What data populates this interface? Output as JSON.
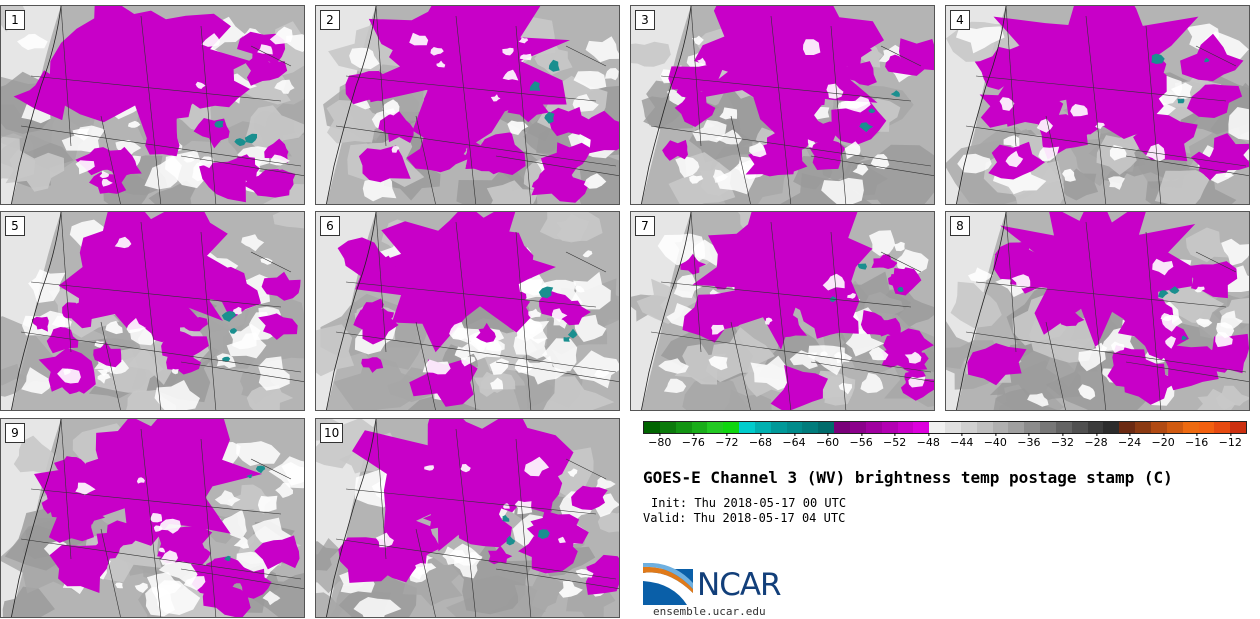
{
  "panels": [
    {
      "label": "1",
      "seed": 11
    },
    {
      "label": "2",
      "seed": 23
    },
    {
      "label": "3",
      "seed": 37
    },
    {
      "label": "4",
      "seed": 41
    },
    {
      "label": "5",
      "seed": 53
    },
    {
      "label": "6",
      "seed": 67
    },
    {
      "label": "7",
      "seed": 71
    },
    {
      "label": "8",
      "seed": 83
    },
    {
      "label": "9",
      "seed": 97
    },
    {
      "label": "10",
      "seed": 101
    }
  ],
  "colorbar": {
    "colors": [
      "#006400",
      "#0b7a0b",
      "#129412",
      "#19ad19",
      "#22c922",
      "#0fd60f",
      "#00cccc",
      "#00b0b0",
      "#009999",
      "#008b8b",
      "#007c7c",
      "#006b6b",
      "#7a007a",
      "#8b008b",
      "#a000a0",
      "#b300b3",
      "#c800c8",
      "#dd00dd",
      "#f0f0f0",
      "#e0e0e0",
      "#d0d0d0",
      "#c0c0c0",
      "#b0b0b0",
      "#a0a0a0",
      "#8c8c8c",
      "#787878",
      "#646464",
      "#505050",
      "#3c3c3c",
      "#2c2c2c",
      "#6b2a12",
      "#8b3a12",
      "#b14a12",
      "#d05a10",
      "#ee6a10",
      "#f26010",
      "#e64a10",
      "#cc3010"
    ],
    "ticks": [
      "−80",
      "−76",
      "−72",
      "−68",
      "−64",
      "−60",
      "−56",
      "−52",
      "−48",
      "−44",
      "−40",
      "−36",
      "−32",
      "−28",
      "−24",
      "−20",
      "−16",
      "−12"
    ],
    "tick_values": [
      -80,
      -76,
      -72,
      -68,
      -64,
      -60,
      -56,
      -52,
      -48,
      -44,
      -40,
      -36,
      -32,
      -28,
      -24,
      -20,
      -16,
      -12
    ],
    "min": -82,
    "max": -10
  },
  "title": "GOES-E Channel 3 (WV) brightness temp postage stamp (C)",
  "init_line": "Init: Thu 2018-05-17 00 UTC",
  "valid_line": "Valid: Thu 2018-05-17 04 UTC",
  "logo": {
    "text": "NCAR",
    "site": "ensemble.ucar.edu"
  },
  "map_colors": {
    "grays": [
      "#c8c8c8",
      "#b4b4b4",
      "#a6a6a6",
      "#9a9a9a"
    ],
    "light": "#e6e6e6",
    "white": "#ffffff",
    "magenta": "#c800c8",
    "teal": "#1a8f8f"
  }
}
